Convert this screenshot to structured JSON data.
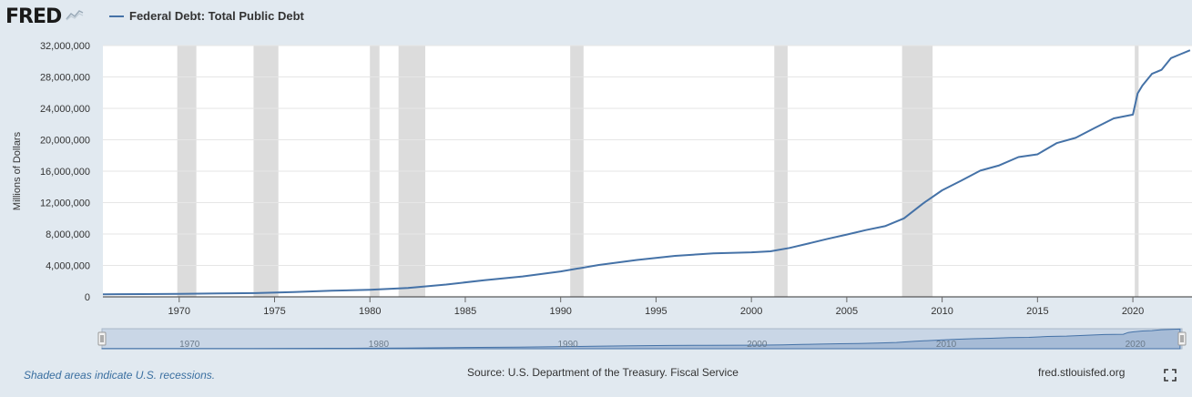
{
  "header": {
    "logo_text": "FRED",
    "legend_label": "Federal Debt: Total Public Debt"
  },
  "footer": {
    "recession_note": "Shaded areas indicate U.S. recessions.",
    "source": "Source: U.S. Department of the Treasury. Fiscal Service",
    "site": "fred.stlouisfed.org"
  },
  "colors": {
    "line": "#4572a7",
    "recession": "#dcdcdc",
    "background": "#e1e9f0",
    "plot": "#ffffff"
  },
  "icons": {
    "logo_chart": "line-chart-icon",
    "fullscreen": "fullscreen-icon"
  },
  "chart_data": {
    "type": "line",
    "title": "",
    "xlabel": "",
    "ylabel": "Millions of Dollars",
    "xlim": [
      1966.0,
      2023.1
    ],
    "ylim": [
      0,
      32000000
    ],
    "grid": true,
    "legend_position": "top-left",
    "yticks": [
      0,
      4000000,
      8000000,
      12000000,
      16000000,
      20000000,
      24000000,
      28000000,
      32000000
    ],
    "ytick_labels": [
      "0",
      "4,000,000",
      "8,000,000",
      "12,000,000",
      "16,000,000",
      "20,000,000",
      "24,000,000",
      "28,000,000",
      "32,000,000"
    ],
    "xticks": [
      1970,
      1975,
      1980,
      1985,
      1990,
      1995,
      2000,
      2005,
      2010,
      2015,
      2020
    ],
    "xtick_labels": [
      "1970",
      "1975",
      "1980",
      "1985",
      "1990",
      "1995",
      "2000",
      "2005",
      "2010",
      "2015",
      "2020"
    ],
    "navigator_labels": [
      "1970",
      "1980",
      "1990",
      "2000",
      "2010",
      "2020"
    ],
    "recessions": [
      [
        1969.9,
        1970.9
      ],
      [
        1973.9,
        1975.2
      ],
      [
        1980.0,
        1980.5
      ],
      [
        1981.5,
        1982.9
      ],
      [
        1990.5,
        1991.2
      ],
      [
        2001.2,
        2001.9
      ],
      [
        2007.9,
        2009.5
      ],
      [
        2020.1,
        2020.3
      ]
    ],
    "series": [
      {
        "name": "Federal Debt: Total Public Debt",
        "x": [
          1966.0,
          1968,
          1970,
          1972,
          1974,
          1976,
          1978,
          1980,
          1982,
          1984,
          1986,
          1988,
          1990,
          1992,
          1994,
          1996,
          1998,
          2000,
          2001,
          2002,
          2003,
          2004,
          2005,
          2006,
          2007,
          2008,
          2009,
          2010,
          2011,
          2012,
          2013,
          2014,
          2015,
          2016,
          2017,
          2018,
          2019,
          2020.0,
          2020.25,
          2020.5,
          2021.0,
          2021.5,
          2022.0,
          2022.5,
          2023.0
        ],
        "values": [
          330000,
          350000,
          380000,
          430000,
          480000,
          620000,
          780000,
          910000,
          1140000,
          1570000,
          2120000,
          2600000,
          3230000,
          4060000,
          4690000,
          5220000,
          5530000,
          5670000,
          5800000,
          6230000,
          6800000,
          7380000,
          7930000,
          8500000,
          9000000,
          10000000,
          11900000,
          13560000,
          14790000,
          16070000,
          16740000,
          17800000,
          18150000,
          19570000,
          20240000,
          21510000,
          22720000,
          23200000,
          25900000,
          26900000,
          28400000,
          28900000,
          30400000,
          30900000,
          31400000
        ]
      }
    ]
  }
}
